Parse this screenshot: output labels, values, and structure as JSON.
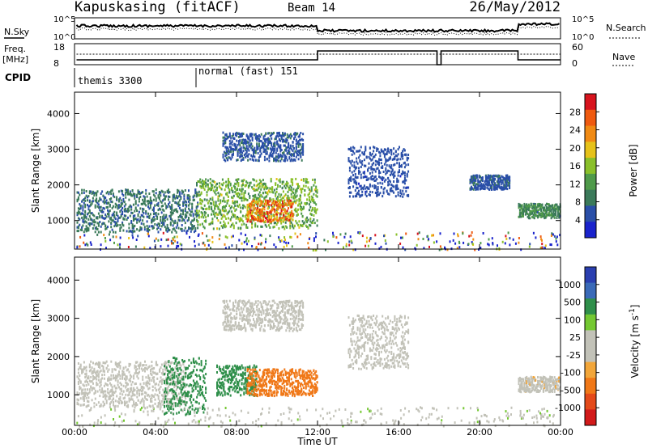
{
  "header": {
    "title": "Kapuskasing (fitACF)",
    "beam": "Beam 14",
    "date": "26/May/2012"
  },
  "status_panel": {
    "nsky_label": "N.Sky",
    "nsky_ticks": [
      "10^5",
      "10^0"
    ],
    "nsearch_label": "N.Search",
    "nsearch_ticks": [
      "10^5",
      "10^0"
    ],
    "freq_label_1": "Freq.",
    "freq_label_2": "[MHz]",
    "freq_ticks": [
      "18",
      "8"
    ],
    "nave_label": "Nave",
    "nave_ticks": [
      "60",
      "0"
    ],
    "cpid_label": "CPID",
    "cpid_entries": [
      "themis 3300",
      "normal (fast) 151"
    ]
  },
  "colors": {
    "power_scale": [
      "#1a23cc",
      "#2a4fa8",
      "#3b7a5a",
      "#4f9a4a",
      "#8ac02a",
      "#e6c21a",
      "#f08a14",
      "#ef5a10",
      "#d8141e"
    ],
    "velocity_scale": [
      "#2a3fb0",
      "#3a6ab8",
      "#2f8f4a",
      "#74c832",
      "#c2c2b8",
      "#c2c2b8",
      "#f2a63a",
      "#f07818",
      "#e44a1a",
      "#d21a1a"
    ]
  },
  "chart_data": [
    {
      "type": "heatmap",
      "title": "Power",
      "ylabel": "Slant Range [km]",
      "xlabel": "",
      "x_range": [
        "00:00",
        "24:00"
      ],
      "ylim": [
        200,
        4600
      ],
      "y_ticks": [
        "1000",
        "2000",
        "3000",
        "4000"
      ],
      "colorbar": {
        "label": "Power [dB]",
        "ticks": [
          "28",
          "24",
          "20",
          "16",
          "12",
          "8",
          "4"
        ],
        "range": [
          0,
          32
        ]
      },
      "regions": [
        {
          "t_start": 0.1,
          "t_end": 6.1,
          "r_low": 700,
          "r_high": 1900,
          "value": 8
        },
        {
          "t_start": 6.0,
          "t_end": 12.0,
          "r_low": 800,
          "r_high": 2200,
          "value": 14
        },
        {
          "t_start": 8.5,
          "t_end": 10.8,
          "r_low": 1000,
          "r_high": 1600,
          "value": 24
        },
        {
          "t_start": 7.3,
          "t_end": 11.3,
          "r_low": 2700,
          "r_high": 3500,
          "value": 6
        },
        {
          "t_start": 13.5,
          "t_end": 16.5,
          "r_low": 1700,
          "r_high": 3100,
          "value": 5
        },
        {
          "t_start": 19.5,
          "t_end": 21.5,
          "r_low": 1900,
          "r_high": 2300,
          "value": 6
        },
        {
          "t_start": 21.9,
          "t_end": 24.0,
          "r_low": 1100,
          "r_high": 1500,
          "value": 10
        }
      ]
    },
    {
      "type": "heatmap",
      "title": "Velocity",
      "ylabel": "Slant Range [km]",
      "xlabel": "Time UT",
      "x_range": [
        "00:00",
        "24:00"
      ],
      "x_ticks": [
        "00:00",
        "04:00",
        "08:00",
        "12:00",
        "16:00",
        "20:00",
        "00:00"
      ],
      "ylim": [
        200,
        4600
      ],
      "y_ticks": [
        "1000",
        "2000",
        "3000",
        "4000"
      ],
      "colorbar": {
        "label": "Velocity [m s^-1]",
        "ticks": [
          "1000",
          "500",
          "100",
          "25",
          "-25",
          "-100",
          "-500",
          "-1000"
        ],
        "range": [
          -1000,
          1000
        ]
      },
      "regions": [
        {
          "t_start": 0.1,
          "t_end": 5.5,
          "r_low": 700,
          "r_high": 1900,
          "value": 0
        },
        {
          "t_start": 4.4,
          "t_end": 6.5,
          "r_low": 500,
          "r_high": 2000,
          "value": 150
        },
        {
          "t_start": 7.0,
          "t_end": 9.0,
          "r_low": 1000,
          "r_high": 1800,
          "value": 150
        },
        {
          "t_start": 8.5,
          "t_end": 12.0,
          "r_low": 1000,
          "r_high": 1700,
          "value": -200
        },
        {
          "t_start": 7.3,
          "t_end": 11.3,
          "r_low": 2700,
          "r_high": 3500,
          "value": 0
        },
        {
          "t_start": 13.5,
          "t_end": 16.5,
          "r_low": 1700,
          "r_high": 3100,
          "value": 0
        },
        {
          "t_start": 21.9,
          "t_end": 24.0,
          "r_low": 1100,
          "r_high": 1500,
          "value": -20
        }
      ]
    }
  ]
}
